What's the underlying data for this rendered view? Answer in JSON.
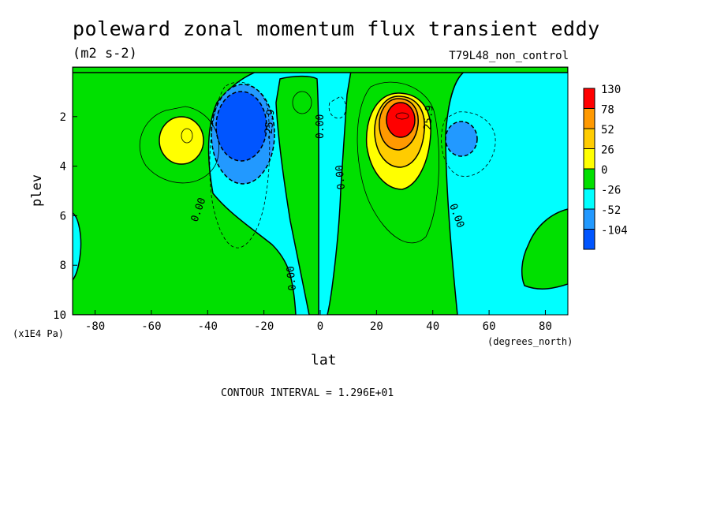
{
  "chart_data": {
    "type": "contour",
    "title": "poleward zonal momentum flux transient eddy",
    "units": "(m2 s-2)",
    "run_label": "T79L48_non_control",
    "xlabel": "lat",
    "xunit": "(degrees_north)",
    "ylabel": "plev",
    "yunit": "(x1E4 Pa)",
    "xlim": [
      -88,
      88
    ],
    "ylim": [
      10,
      0
    ],
    "x_ticks": [
      -80,
      -60,
      -40,
      -20,
      0,
      20,
      40,
      60,
      80
    ],
    "y_ticks": [
      2,
      4,
      6,
      8,
      10
    ],
    "contour_interval_text": "CONTOUR INTERVAL = 1.296E+01",
    "contour_labels": [
      "0.00",
      "0.00",
      "0.00",
      "0.00",
      "0.00",
      "0.00",
      "-25.9",
      "25.9"
    ],
    "colorbar": {
      "levels": [
        "130",
        "78",
        "52",
        "26",
        "0",
        "-26",
        "-52",
        "-104"
      ],
      "colors": [
        "#ff0000",
        "#ff9900",
        "#ffcc00",
        "#ffff00",
        "#00e000",
        "#00ffff",
        "#2299ff",
        "#0055ff"
      ]
    },
    "features": [
      {
        "name": "southern-positive-max",
        "lat": -48,
        "plev": 2.8,
        "value": 30
      },
      {
        "name": "southern-negative-min",
        "lat": -28,
        "plev": 2.4,
        "value": -75
      },
      {
        "name": "northern-positive-max",
        "lat": 30,
        "plev": 2.0,
        "value": 120
      },
      {
        "name": "northern-negative-min",
        "lat": 50,
        "plev": 2.9,
        "value": -45
      }
    ]
  }
}
